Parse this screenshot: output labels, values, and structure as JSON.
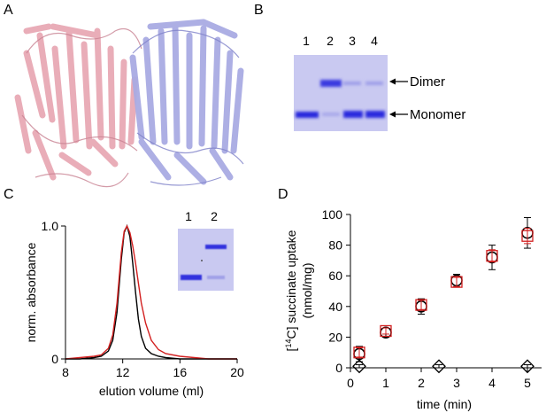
{
  "panels": {
    "A": {
      "label": "A"
    },
    "B": {
      "label": "B",
      "lanes": [
        "1",
        "2",
        "3",
        "4"
      ],
      "band_labels": {
        "dimer": "Dimer",
        "monomer": "Monomer"
      }
    },
    "C": {
      "label": "C",
      "inset_lanes": [
        "1",
        "2"
      ]
    },
    "D": {
      "label": "D"
    }
  },
  "colors": {
    "protein_chain_1": "#e8a9b5",
    "protein_chain_2": "#a9abe3",
    "gel_background": "#c9c9f1",
    "gel_band": "#2f2fe0",
    "trace_black": "#000000",
    "trace_red": "#d21f1f"
  },
  "chart_data": [
    {
      "panel": "C",
      "type": "line",
      "title": "",
      "xlabel": "elution volume (ml)",
      "ylabel": "norm. absorbance",
      "xlim": [
        8,
        20
      ],
      "ylim": [
        0,
        1.0
      ],
      "xticks": [
        "8",
        "12",
        "16",
        "20"
      ],
      "yticks": [
        "0",
        "1.0"
      ],
      "grid": false,
      "series": [
        {
          "color": "#000000",
          "x": [
            8,
            9,
            10,
            10.5,
            11,
            11.3,
            11.6,
            11.9,
            12.1,
            12.3,
            12.5,
            12.7,
            12.9,
            13.1,
            13.3,
            13.6,
            14,
            14.5,
            15,
            16,
            17,
            18,
            20
          ],
          "y": [
            0.0,
            0.0,
            0.01,
            0.02,
            0.06,
            0.14,
            0.35,
            0.75,
            0.95,
            1.0,
            0.92,
            0.72,
            0.5,
            0.3,
            0.17,
            0.08,
            0.04,
            0.02,
            0.01,
            0.0,
            0.0,
            0.0,
            0.0
          ]
        },
        {
          "color": "#d21f1f",
          "x": [
            8,
            9,
            10,
            10.5,
            11,
            11.3,
            11.6,
            11.9,
            12.1,
            12.3,
            12.5,
            12.7,
            12.9,
            13.1,
            13.3,
            13.6,
            14,
            14.5,
            15,
            16,
            17,
            18,
            20
          ],
          "y": [
            0.0,
            0.01,
            0.02,
            0.03,
            0.08,
            0.18,
            0.42,
            0.8,
            0.96,
            1.0,
            0.95,
            0.85,
            0.72,
            0.57,
            0.42,
            0.27,
            0.14,
            0.07,
            0.04,
            0.02,
            0.01,
            0.0,
            0.0
          ]
        }
      ]
    },
    {
      "panel": "D",
      "type": "scatter",
      "title": "",
      "xlabel": "time (min)",
      "ylabel": "[14C] succinate uptake (nmol/mg)",
      "ylabel_line1": "[14C] succinate uptake",
      "ylabel_line2": "(nmol/mg)",
      "xlim": [
        0,
        5.4
      ],
      "ylim": [
        0,
        100
      ],
      "xticks": [
        "0",
        "1",
        "2",
        "3",
        "4",
        "5"
      ],
      "yticks": [
        "0",
        "20",
        "40",
        "60",
        "80",
        "100"
      ],
      "grid": false,
      "series": [
        {
          "marker": "circle",
          "color": "#000000",
          "x": [
            0.25,
            1,
            2,
            3,
            4,
            5
          ],
          "y": [
            9,
            23,
            40,
            57,
            72,
            88
          ],
          "err": [
            5,
            3,
            5,
            4,
            8,
            10
          ]
        },
        {
          "marker": "square",
          "color": "#d21f1f",
          "x": [
            0.25,
            1,
            2,
            3,
            4,
            5
          ],
          "y": [
            10,
            24,
            41,
            56,
            73,
            86
          ],
          "err": [
            3,
            2,
            3,
            3,
            4,
            5
          ]
        },
        {
          "marker": "diamond",
          "color": "#000000",
          "x": [
            0.25,
            2.5,
            5
          ],
          "y": [
            1,
            1,
            1
          ],
          "err": [
            1,
            1,
            1
          ]
        }
      ]
    }
  ]
}
